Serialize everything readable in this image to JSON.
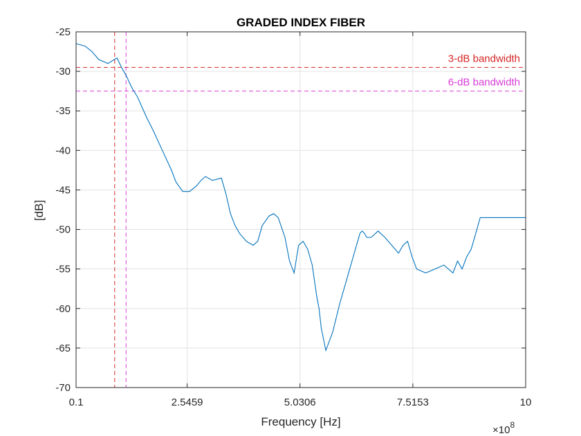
{
  "chart_data": {
    "type": "line",
    "title": "GRADED INDEX FIBER",
    "xlabel": "Frequency [Hz]",
    "ylabel": "[dB]",
    "x_exponent_base": "×10",
    "x_exponent_power": "8",
    "xlim": [
      0.1,
      10
    ],
    "ylim": [
      -70,
      -25
    ],
    "xticks": [
      0.1,
      2.5459,
      5.0306,
      7.5153,
      10
    ],
    "xtick_labels": [
      "0.1",
      "2.5459",
      "5.0306",
      "7.5153",
      "10"
    ],
    "yticks": [
      -70,
      -65,
      -60,
      -55,
      -50,
      -45,
      -40,
      -35,
      -30,
      -25
    ],
    "ytick_labels": [
      "-70",
      "-65",
      "-60",
      "-55",
      "-50",
      "-45",
      "-40",
      "-35",
      "-30",
      "-25"
    ],
    "grid": true,
    "line_color": "#0072BD",
    "series": [
      {
        "x": [
          0.1,
          0.3,
          0.45,
          0.6,
          0.8,
          1.0,
          1.1,
          1.2,
          1.28,
          1.35,
          1.45,
          1.55,
          1.65,
          1.8,
          2.0,
          2.2,
          2.3,
          2.45,
          2.6,
          2.75,
          2.85,
          2.95,
          3.1,
          3.3,
          3.4,
          3.5,
          3.6,
          3.7,
          3.85,
          4.0,
          4.1,
          4.2,
          4.35,
          4.45,
          4.55,
          4.7,
          4.8,
          4.9,
          5.0,
          5.1,
          5.2,
          5.3,
          5.35,
          5.4,
          5.45,
          5.5,
          5.6,
          5.75,
          5.9,
          6.05,
          6.2,
          6.3,
          6.35,
          6.4,
          6.45,
          6.5,
          6.6,
          6.75,
          6.9,
          7.05,
          7.2,
          7.3,
          7.4,
          7.5,
          7.6,
          7.8,
          8.0,
          8.2,
          8.4,
          8.5,
          8.6,
          8.7,
          8.8,
          8.9,
          9.0,
          9.1,
          9.2,
          9.3,
          9.4,
          9.5,
          9.6,
          9.7,
          9.8,
          9.9,
          10.0
        ],
        "y": [
          -26.5,
          -26.8,
          -27.5,
          -28.5,
          -29.0,
          -28.3,
          -29.5,
          -30.5,
          -31.5,
          -32.3,
          -33.2,
          -34.5,
          -35.8,
          -37.5,
          -40.0,
          -42.5,
          -44.0,
          -45.2,
          -45.2,
          -44.5,
          -43.8,
          -43.3,
          -43.8,
          -43.5,
          -45.5,
          -48.0,
          -49.5,
          -50.5,
          -51.5,
          -52.0,
          -51.5,
          -49.5,
          -48.3,
          -48.0,
          -48.5,
          -51.0,
          -54.0,
          -55.5,
          -52.0,
          -51.5,
          -52.5,
          -54.5,
          -56.5,
          -58.5,
          -60.0,
          -62.5,
          -65.3,
          -63.0,
          -59.5,
          -56.5,
          -53.5,
          -51.5,
          -50.5,
          -50.2,
          -50.5,
          -51.0,
          -51.0,
          -50.2,
          -51.0,
          -52.0,
          -53.0,
          -52.0,
          -51.5,
          -53.5,
          -55.0,
          -55.5,
          -55.0,
          -54.5,
          -55.5,
          -54.0,
          -55.0,
          -53.5,
          -52.5,
          -50.5,
          -48.5,
          -48.5,
          -48.5,
          -48.5,
          -48.5,
          -48.5,
          -48.5,
          -48.5,
          -48.5,
          -48.5,
          -48.5
        ]
      }
    ],
    "annotations": [
      {
        "text": "3-dB bandwidth",
        "y": -29.5,
        "x": 0.95,
        "color": "#D62728"
      },
      {
        "text": "6-dB bandwidth",
        "y": -32.5,
        "x": 1.2,
        "color": "#D63ED6"
      }
    ]
  }
}
